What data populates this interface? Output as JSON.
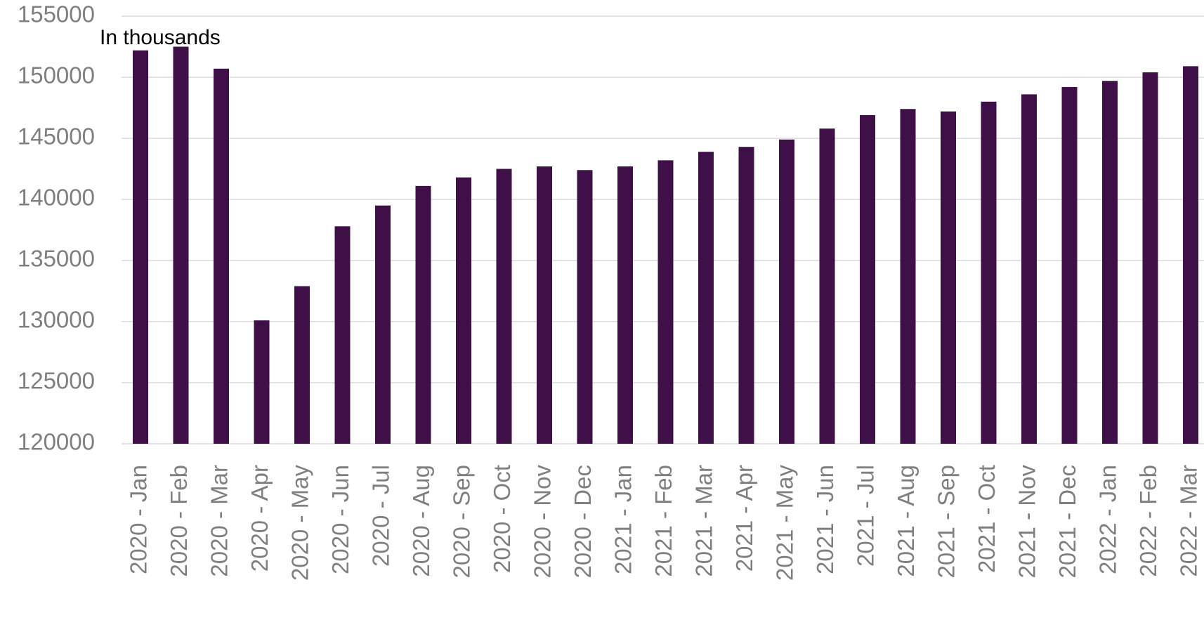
{
  "chart_data": {
    "type": "bar",
    "annotation": "In thousands",
    "categories": [
      "2020 - Jan",
      "2020 - Feb",
      "2020 - Mar",
      "2020 - Apr",
      "2020 - May",
      "2020 - Jun",
      "2020 - Jul",
      "2020 - Aug",
      "2020 - Sep",
      "2020 - Oct",
      "2020 - Nov",
      "2020 - Dec",
      "2021 - Jan",
      "2021 - Feb",
      "2021 - Mar",
      "2021 - Apr",
      "2021 - May",
      "2021 - Jun",
      "2021 - Jul",
      "2021 - Aug",
      "2021 - Sep",
      "2021 - Oct",
      "2021 - Nov",
      "2021 - Dec",
      "2022 - Jan",
      "2022 - Feb",
      "2022 - Mar"
    ],
    "values": [
      152200,
      152500,
      150700,
      130100,
      132900,
      137800,
      139500,
      141100,
      141800,
      142500,
      142700,
      142400,
      142700,
      143200,
      143900,
      144300,
      144900,
      145800,
      146900,
      147400,
      147200,
      148000,
      148600,
      149200,
      149700,
      150400,
      150900
    ],
    "color": "#3f1048",
    "ylim": [
      120000,
      155000
    ],
    "yticks": [
      120000,
      125000,
      130000,
      135000,
      140000,
      145000,
      150000,
      155000
    ],
    "grid": true
  }
}
